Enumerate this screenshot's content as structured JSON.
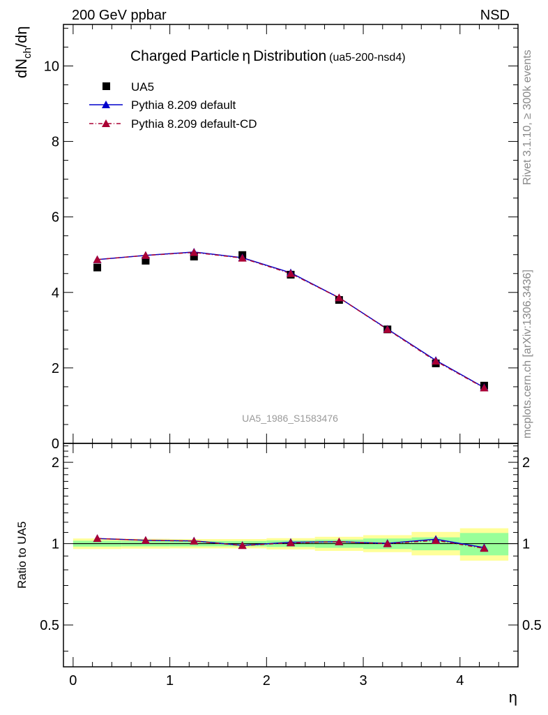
{
  "header": {
    "left": "200 GeV ppbar",
    "right": "NSD"
  },
  "side_labels": {
    "rivet": "Rivet 3.1.10, ≥ 300k events",
    "mcplots": "mcplots.cern.ch [arXiv:1306.3436]"
  },
  "colors": {
    "data": "#000000",
    "pythia_default": "#0000cc",
    "pythia_cd": "#aa0033",
    "band_inner": "#99ff99",
    "band_outer": "#ffff99",
    "side_text": "#888888"
  },
  "chart_data": [
    {
      "type": "scatter",
      "title": "Charged Particle η Distribution",
      "title_symbol": "η",
      "title_main_1": "Charged Particle",
      "title_main_2": "Distribution",
      "title_suffix": "(ua5-200-nsd4)",
      "ylabel": "dN",
      "ylabel_sub": "ch",
      "ylabel_tail": "/dη",
      "xlabel": "η",
      "analysis_id": "UA5_1986_S1583476",
      "xlim": [
        -0.1,
        4.6
      ],
      "ylim": [
        0,
        11.1
      ],
      "yticks": [
        0,
        2,
        4,
        6,
        8,
        10
      ],
      "legend_position": "top-left",
      "x": [
        0.25,
        0.75,
        1.25,
        1.75,
        2.25,
        2.75,
        3.25,
        3.75,
        4.25
      ],
      "series": [
        {
          "name": "UA5",
          "marker": "square",
          "values": [
            4.66,
            4.84,
            4.95,
            4.99,
            4.47,
            3.8,
            3.02,
            2.12,
            1.53
          ]
        },
        {
          "name": "Pythia 8.209 default",
          "marker": "triangle",
          "line": "solid",
          "values": [
            4.87,
            4.98,
            5.07,
            4.92,
            4.52,
            3.86,
            3.03,
            2.2,
            1.48
          ]
        },
        {
          "name": "Pythia 8.209 default-CD",
          "marker": "triangle",
          "line": "dashdot",
          "values": [
            4.87,
            4.98,
            5.06,
            4.91,
            4.5,
            3.86,
            3.02,
            2.18,
            1.47
          ]
        }
      ]
    },
    {
      "type": "line",
      "ylabel": "Ratio to UA5",
      "xlabel": "η",
      "xlim": [
        -0.1,
        4.6
      ],
      "ylim": [
        0.35,
        2.35
      ],
      "ylog": true,
      "yticks": [
        0.5,
        1,
        2
      ],
      "ytick_labels": [
        "0.5",
        "1",
        "2"
      ],
      "xticks": [
        0,
        1,
        2,
        3,
        4
      ],
      "bin_edges": [
        0,
        0.5,
        1.0,
        1.5,
        2.0,
        2.5,
        3.0,
        3.5,
        4.0,
        4.5
      ],
      "band_inner": {
        "lo": [
          0.975,
          0.977,
          0.977,
          0.977,
          0.972,
          0.965,
          0.955,
          0.945,
          0.905
        ],
        "hi": [
          1.025,
          1.023,
          1.023,
          1.023,
          1.028,
          1.035,
          1.045,
          1.055,
          1.095
        ]
      },
      "band_outer": {
        "lo": [
          0.955,
          0.958,
          0.96,
          0.96,
          0.952,
          0.94,
          0.93,
          0.905,
          0.865
        ],
        "hi": [
          1.045,
          1.042,
          1.04,
          1.04,
          1.048,
          1.06,
          1.075,
          1.105,
          1.14
        ]
      },
      "x": [
        0.25,
        0.75,
        1.25,
        1.75,
        2.25,
        2.75,
        3.25,
        3.75,
        4.25
      ],
      "series": [
        {
          "name": "Pythia 8.209 default",
          "values": [
            1.045,
            1.029,
            1.024,
            0.986,
            1.012,
            1.016,
            1.003,
            1.038,
            0.967
          ]
        },
        {
          "name": "Pythia 8.209 default-CD",
          "values": [
            1.045,
            1.029,
            1.022,
            0.984,
            1.007,
            1.016,
            1.0,
            1.028,
            0.961
          ]
        }
      ]
    }
  ]
}
